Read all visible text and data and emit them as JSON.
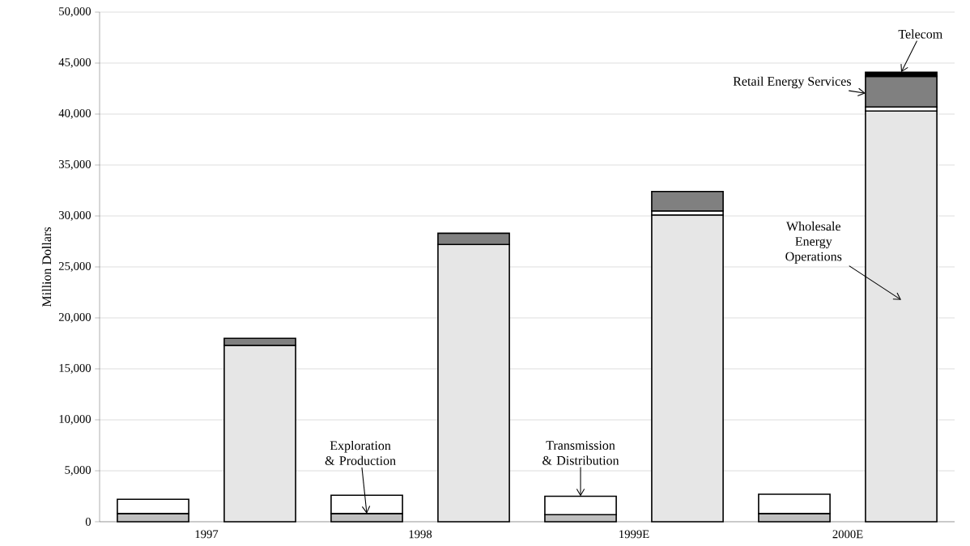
{
  "chart_data": {
    "type": "bar",
    "ylabel": "Million Dollars",
    "categories": [
      "1997",
      "1998",
      "1999E",
      "2000E"
    ],
    "series": [
      {
        "name": "Exploration & Production",
        "color": "#bfbfbf",
        "values": [
          800,
          800,
          700,
          800
        ],
        "base": [
          0,
          0,
          0,
          0
        ]
      },
      {
        "name": "Transmission & Distribution",
        "color": "#ffffff",
        "values": [
          1400,
          1800,
          1800,
          1900
        ],
        "base": [
          800,
          800,
          700,
          800
        ]
      },
      {
        "name": "Wholesale Energy Operations",
        "color": "#e6e6e6",
        "values": [
          17300,
          27200,
          30100,
          40300
        ],
        "base": [
          0,
          0,
          0,
          0
        ]
      },
      {
        "color": "#ffffff",
        "values": [
          null,
          null,
          400,
          400
        ],
        "base": [
          null,
          null,
          30100,
          40300
        ]
      },
      {
        "name": "Retail Energy Services",
        "color": "#808080",
        "values": [
          700,
          1100,
          1900,
          3000
        ],
        "base": [
          17300,
          27200,
          30500,
          40700
        ]
      },
      {
        "name": "Telecom",
        "color": "#000000",
        "values": [
          null,
          null,
          null,
          400
        ],
        "base": [
          null,
          null,
          null,
          43700
        ]
      }
    ],
    "ylim": [
      0,
      50000
    ],
    "yticks": [
      0,
      {
        "value": 5000,
        "label": "5,000"
      },
      {
        "value": 10000,
        "label": "10,000"
      },
      {
        "value": 15000,
        "label": "15,000"
      },
      {
        "value": 20000,
        "label": "20,000"
      },
      {
        "value": 25000,
        "label": "25,000"
      },
      {
        "value": 30000,
        "label": "30,000"
      },
      {
        "value": 35000,
        "label": "35,000"
      },
      {
        "value": 40000,
        "label": "40,000"
      },
      {
        "value": 45000,
        "label": "45,000"
      },
      {
        "value": 50000,
        "label": "50,000"
      }
    ],
    "grid": "y",
    "legend": false
  }
}
